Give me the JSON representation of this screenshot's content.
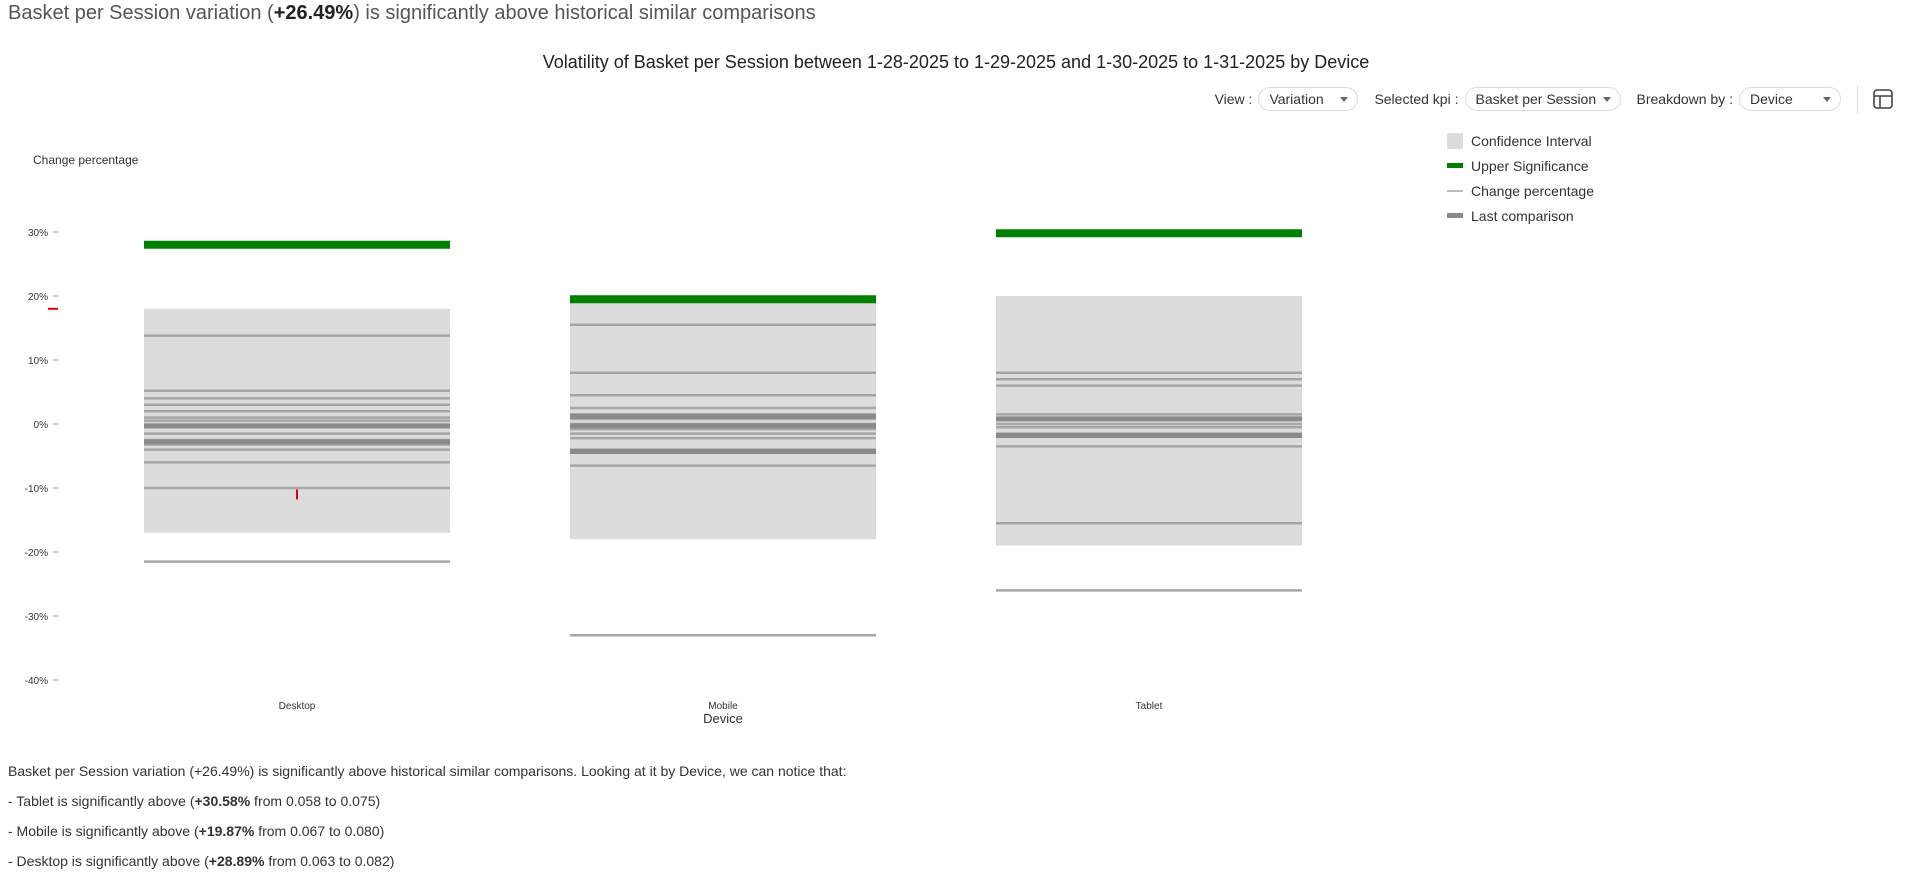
{
  "headline": {
    "prefix": "Basket per Session variation (",
    "value": "+26.49%",
    "suffix": ") is significantly above historical similar comparisons"
  },
  "controls": {
    "view_label": "View :",
    "view_value": "Variation",
    "kpi_label": "Selected kpi :",
    "kpi_value": "Basket per Session",
    "breakdown_label": "Breakdown by :",
    "breakdown_value": "Device",
    "table_icon": "table-icon"
  },
  "legend": {
    "confidence_interval": "Confidence Interval",
    "upper_significance": "Upper Significance",
    "change_percentage": "Change percentage",
    "last_comparison": "Last comparison"
  },
  "summary": {
    "intro": "Basket per Session variation (+26.49%) is significantly above historical similar comparisons. Looking at it by Device, we can notice that:",
    "items": [
      {
        "prefix": "- Tablet is significantly above (",
        "value": "+30.58%",
        "suffix": " from 0.058 to 0.075)"
      },
      {
        "prefix": "- Mobile is significantly above (",
        "value": "+19.87%",
        "suffix": " from 0.067 to 0.080)"
      },
      {
        "prefix": "- Desktop is significantly above (",
        "value": "+28.89%",
        "suffix": " from 0.063 to 0.082)"
      }
    ]
  },
  "chart_data": {
    "type": "bar",
    "title": "Volatility of Basket per Session between 1-28-2025 to 1-29-2025 and 1-30-2025 to 1-31-2025 by Device",
    "ylabel": "Change percentage",
    "xlabel": "Device",
    "ylim": [
      -40,
      35
    ],
    "yticks": [
      30,
      20,
      10,
      0,
      -10,
      -20,
      -30,
      -40
    ],
    "ytick_labels": [
      "30%",
      "20%",
      "10%",
      "0%",
      "-10%",
      "-20%",
      "-30%",
      "-40%"
    ],
    "categories": [
      "Desktop",
      "Mobile",
      "Tablet"
    ],
    "confidence_interval": [
      {
        "low": -17.0,
        "high": 18.0
      },
      {
        "low": -18.0,
        "high": 19.0
      },
      {
        "low": -19.0,
        "high": 20.0
      }
    ],
    "upper_significance": [
      28.0,
      19.5,
      29.8
    ],
    "change_percentage": [
      [
        13.8,
        5.2,
        4.0,
        3.0,
        2.0,
        1.0,
        0.5,
        -0.5,
        -1.5,
        -2.5,
        -3.2,
        -4.0,
        -6.0,
        -10.0,
        -21.5
      ],
      [
        15.5,
        8.0,
        4.5,
        2.5,
        1.5,
        0.8,
        0.0,
        -0.8,
        -1.5,
        -2.2,
        -4.0,
        -4.5,
        -6.5,
        -33.0
      ],
      [
        8.0,
        7.0,
        6.0,
        1.5,
        0.8,
        0.0,
        -0.5,
        -1.5,
        -2.0,
        -3.5,
        -15.5,
        -26.0
      ]
    ],
    "last_comparison": [
      [
        -0.3,
        -2.8
      ],
      [
        -0.3,
        1.2,
        -4.3
      ],
      [
        -1.8,
        0.8
      ]
    ],
    "markers": [
      {
        "category": "Desktop",
        "type": "tick",
        "value": -11.0
      }
    ],
    "axis_marker": {
      "value": 18.0
    },
    "colors": {
      "confidence": "#dcdcdc",
      "upper": "#008000",
      "change": "#a6a6a6",
      "last": "#8a8a8a",
      "marker": "#e00000"
    }
  }
}
